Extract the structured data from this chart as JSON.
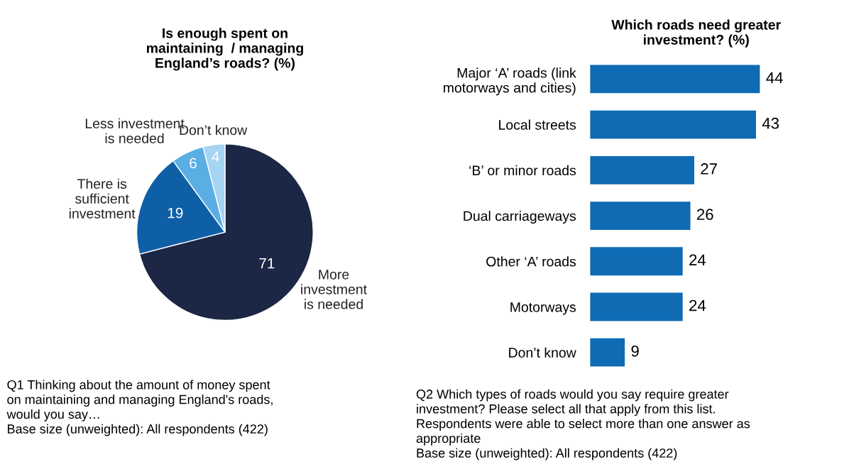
{
  "chart_data": [
    {
      "type": "pie",
      "title": "Is enough spent on\nmaintaining  / managing\nEngland’s roads? (%)",
      "categories": [
        "More\ninvestment\nis needed",
        "There is\nsufficient\ninvestment",
        "Less investment\nis needed",
        "Don’t know"
      ],
      "values": [
        71,
        19,
        6,
        4
      ],
      "colors": [
        "#1b2744",
        "#0f5fa6",
        "#5aaee4",
        "#a6d4f3"
      ],
      "data_labels": true,
      "annotations": [
        "Q1 Thinking about the amount of money spent\non maintaining and managing England's roads,\nwould you say…\nBase size (unweighted): All respondents (422)"
      ]
    },
    {
      "type": "bar",
      "orientation": "horizontal",
      "title": "Which roads need greater\ninvestment? (%)",
      "categories": [
        "Major ‘A’ roads (link\nmotorways and cities)",
        "Local streets",
        "‘B’ or minor roads",
        "Dual carriageways",
        "Other ‘A’ roads",
        "Motorways",
        "Don’t know"
      ],
      "values": [
        44,
        43,
        27,
        26,
        24,
        24,
        9
      ],
      "color": "#0f6bb4",
      "data_labels": true,
      "annotations": [
        "Q2 Which types of roads would you say require greater\ninvestment? Please select all that apply from this list.\nRespondents were able to select more than one answer as\nappropriate\nBase size (unweighted): All respondents (422)"
      ]
    }
  ]
}
